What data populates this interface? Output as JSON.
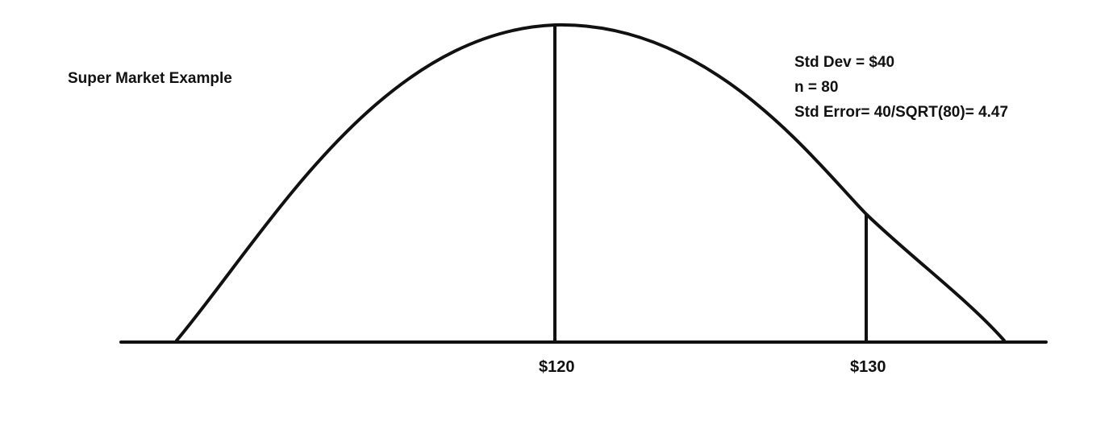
{
  "title": "Super Market Example",
  "stats": {
    "std_dev": "Std Dev = $40",
    "n": "n = 80",
    "std_error": "Std Error= 40/SQRT(80)= 4.47"
  },
  "axis": {
    "tick_labels": [
      "$120",
      "$130"
    ]
  },
  "colors": {
    "ink": "#111111",
    "background": "#ffffff"
  }
}
